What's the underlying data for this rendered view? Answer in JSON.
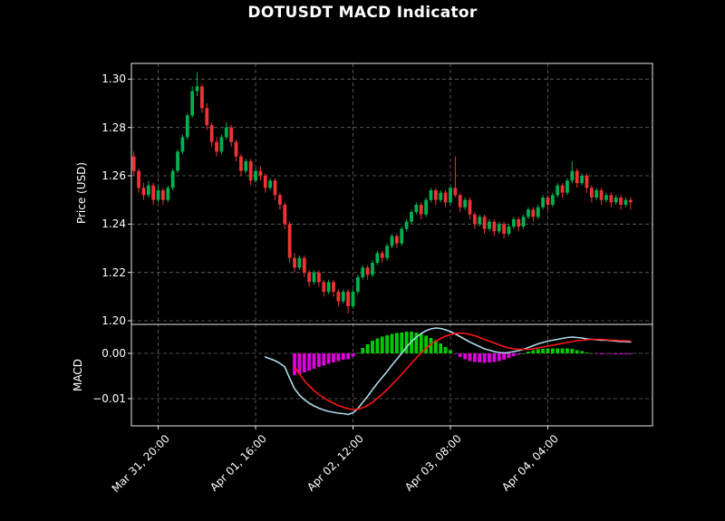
{
  "title": "DOTUSDT MACD Indicator",
  "panels": {
    "price": {
      "ylabel": "Price (USD)"
    },
    "macd": {
      "ylabel": "MACD"
    }
  },
  "colors": {
    "background": "#000000",
    "text": "#ffffff",
    "grid": "#bbbbbb",
    "spine": "#e8e8e8",
    "candle_up": "#00b050",
    "candle_down": "#ef3232",
    "macd_line": "#add8e6",
    "signal_line": "#ff1414",
    "hist_up": "#00cc00",
    "hist_down": "#e000e0"
  },
  "chart_data": [
    {
      "type": "candlestick",
      "title": "DOTUSDT MACD Indicator",
      "ylabel": "Price (USD)",
      "ylim": [
        1.1985,
        1.3065
      ],
      "yticks": [
        1.2,
        1.22,
        1.24,
        1.26,
        1.28,
        1.3
      ],
      "grid": true,
      "xtick_indices": [
        5,
        25,
        45,
        65,
        85
      ],
      "xtick_labels": [
        "Mar 31, 20:00",
        "Apr 01, 16:00",
        "Apr 02, 12:00",
        "Apr 03, 08:00",
        "Apr 04, 04:00"
      ],
      "interval": "1h",
      "ohlc_format": [
        "open",
        "high",
        "low",
        "close"
      ],
      "candles_ohlc": [
        [
          1.268,
          1.27,
          1.26,
          1.262
        ],
        [
          1.262,
          1.263,
          1.253,
          1.255
        ],
        [
          1.255,
          1.257,
          1.25,
          1.252
        ],
        [
          1.252,
          1.258,
          1.251,
          1.256
        ],
        [
          1.256,
          1.257,
          1.248,
          1.25
        ],
        [
          1.25,
          1.256,
          1.249,
          1.254
        ],
        [
          1.254,
          1.255,
          1.248,
          1.25
        ],
        [
          1.25,
          1.256,
          1.249,
          1.255
        ],
        [
          1.255,
          1.263,
          1.254,
          1.262
        ],
        [
          1.262,
          1.271,
          1.261,
          1.27
        ],
        [
          1.27,
          1.277,
          1.269,
          1.276
        ],
        [
          1.276,
          1.286,
          1.275,
          1.285
        ],
        [
          1.285,
          1.297,
          1.284,
          1.295
        ],
        [
          1.295,
          1.303,
          1.293,
          1.297
        ],
        [
          1.297,
          1.298,
          1.286,
          1.288
        ],
        [
          1.288,
          1.29,
          1.279,
          1.281
        ],
        [
          1.281,
          1.282,
          1.272,
          1.274
        ],
        [
          1.274,
          1.276,
          1.268,
          1.27
        ],
        [
          1.27,
          1.277,
          1.269,
          1.276
        ],
        [
          1.276,
          1.282,
          1.275,
          1.28
        ],
        [
          1.28,
          1.281,
          1.272,
          1.274
        ],
        [
          1.274,
          1.275,
          1.266,
          1.268
        ],
        [
          1.268,
          1.269,
          1.26,
          1.262
        ],
        [
          1.262,
          1.267,
          1.261,
          1.266
        ],
        [
          1.266,
          1.267,
          1.256,
          1.258
        ],
        [
          1.258,
          1.263,
          1.257,
          1.262
        ],
        [
          1.262,
          1.264,
          1.258,
          1.26
        ],
        [
          1.26,
          1.261,
          1.253,
          1.255
        ],
        [
          1.255,
          1.259,
          1.254,
          1.258
        ],
        [
          1.258,
          1.259,
          1.25,
          1.252
        ],
        [
          1.252,
          1.253,
          1.246,
          1.248
        ],
        [
          1.248,
          1.249,
          1.238,
          1.24
        ],
        [
          1.24,
          1.241,
          1.224,
          1.226
        ],
        [
          1.226,
          1.228,
          1.22,
          1.222
        ],
        [
          1.222,
          1.227,
          1.221,
          1.226
        ],
        [
          1.226,
          1.227,
          1.218,
          1.22
        ],
        [
          1.22,
          1.221,
          1.214,
          1.216
        ],
        [
          1.216,
          1.221,
          1.215,
          1.22
        ],
        [
          1.22,
          1.221,
          1.214,
          1.216
        ],
        [
          1.216,
          1.217,
          1.21,
          1.212
        ],
        [
          1.212,
          1.217,
          1.211,
          1.216
        ],
        [
          1.216,
          1.217,
          1.21,
          1.212
        ],
        [
          1.212,
          1.213,
          1.206,
          1.208
        ],
        [
          1.208,
          1.213,
          1.207,
          1.212
        ],
        [
          1.212,
          1.213,
          1.203,
          1.206
        ],
        [
          1.206,
          1.213,
          1.205,
          1.212
        ],
        [
          1.212,
          1.219,
          1.211,
          1.218
        ],
        [
          1.218,
          1.223,
          1.217,
          1.222
        ],
        [
          1.222,
          1.223,
          1.217,
          1.219
        ],
        [
          1.219,
          1.225,
          1.218,
          1.224
        ],
        [
          1.224,
          1.229,
          1.223,
          1.228
        ],
        [
          1.228,
          1.229,
          1.224,
          1.226
        ],
        [
          1.226,
          1.232,
          1.225,
          1.231
        ],
        [
          1.231,
          1.236,
          1.23,
          1.235
        ],
        [
          1.235,
          1.236,
          1.23,
          1.232
        ],
        [
          1.232,
          1.239,
          1.231,
          1.238
        ],
        [
          1.238,
          1.242,
          1.237,
          1.241
        ],
        [
          1.241,
          1.246,
          1.24,
          1.245
        ],
        [
          1.245,
          1.249,
          1.244,
          1.248
        ],
        [
          1.248,
          1.249,
          1.242,
          1.244
        ],
        [
          1.244,
          1.251,
          1.243,
          1.25
        ],
        [
          1.25,
          1.255,
          1.249,
          1.254
        ],
        [
          1.254,
          1.255,
          1.248,
          1.25
        ],
        [
          1.25,
          1.254,
          1.249,
          1.253
        ],
        [
          1.253,
          1.254,
          1.247,
          1.249
        ],
        [
          1.249,
          1.256,
          1.248,
          1.255
        ],
        [
          1.255,
          1.268,
          1.251,
          1.252
        ],
        [
          1.252,
          1.253,
          1.245,
          1.247
        ],
        [
          1.247,
          1.251,
          1.246,
          1.25
        ],
        [
          1.25,
          1.251,
          1.242,
          1.244
        ],
        [
          1.244,
          1.245,
          1.238,
          1.24
        ],
        [
          1.24,
          1.244,
          1.239,
          1.243
        ],
        [
          1.243,
          1.244,
          1.236,
          1.238
        ],
        [
          1.238,
          1.242,
          1.237,
          1.241
        ],
        [
          1.241,
          1.242,
          1.235,
          1.237
        ],
        [
          1.237,
          1.241,
          1.236,
          1.24
        ],
        [
          1.24,
          1.241,
          1.234,
          1.236
        ],
        [
          1.236,
          1.24,
          1.235,
          1.239
        ],
        [
          1.239,
          1.243,
          1.238,
          1.242
        ],
        [
          1.242,
          1.243,
          1.237,
          1.239
        ],
        [
          1.239,
          1.244,
          1.238,
          1.243
        ],
        [
          1.243,
          1.247,
          1.242,
          1.246
        ],
        [
          1.246,
          1.247,
          1.241,
          1.243
        ],
        [
          1.243,
          1.248,
          1.242,
          1.247
        ],
        [
          1.247,
          1.252,
          1.246,
          1.251
        ],
        [
          1.251,
          1.252,
          1.246,
          1.248
        ],
        [
          1.248,
          1.253,
          1.247,
          1.252
        ],
        [
          1.252,
          1.257,
          1.251,
          1.256
        ],
        [
          1.256,
          1.257,
          1.251,
          1.253
        ],
        [
          1.253,
          1.259,
          1.252,
          1.258
        ],
        [
          1.258,
          1.266,
          1.257,
          1.262
        ],
        [
          1.262,
          1.263,
          1.255,
          1.257
        ],
        [
          1.257,
          1.261,
          1.256,
          1.26
        ],
        [
          1.26,
          1.261,
          1.253,
          1.255
        ],
        [
          1.255,
          1.256,
          1.249,
          1.251
        ],
        [
          1.251,
          1.255,
          1.25,
          1.254
        ],
        [
          1.254,
          1.255,
          1.248,
          1.25
        ],
        [
          1.25,
          1.253,
          1.249,
          1.252
        ],
        [
          1.252,
          1.253,
          1.247,
          1.249
        ],
        [
          1.249,
          1.252,
          1.248,
          1.251
        ],
        [
          1.251,
          1.252,
          1.246,
          1.248
        ],
        [
          1.248,
          1.251,
          1.247,
          1.25
        ],
        [
          1.25,
          1.251,
          1.246,
          1.249
        ]
      ]
    },
    {
      "type": "macd",
      "ylabel": "MACD",
      "ylim": [
        -0.016,
        0.0064
      ],
      "yticks": [
        0.0,
        -0.01
      ],
      "grid": true,
      "shares_x_with": "candlestick panel",
      "macd_start_index": 27,
      "macd_line": [
        -0.0008,
        -0.0012,
        -0.0016,
        -0.0022,
        -0.003,
        -0.0055,
        -0.0078,
        -0.0092,
        -0.0102,
        -0.011,
        -0.0116,
        -0.0121,
        -0.0125,
        -0.0128,
        -0.013,
        -0.0132,
        -0.0133,
        -0.0135,
        -0.0131,
        -0.0122,
        -0.0108,
        -0.0095,
        -0.008,
        -0.0066,
        -0.0053,
        -0.004,
        -0.0026,
        -0.0013,
        0.0,
        0.0014,
        0.0026,
        0.0036,
        0.0044,
        0.005,
        0.0054,
        0.0056,
        0.0055,
        0.0052,
        0.0048,
        0.0043,
        0.0037,
        0.0031,
        0.0025,
        0.002,
        0.0015,
        0.001,
        0.0007,
        0.0004,
        0.0002,
        0.0001,
        0.0002,
        0.0004,
        0.0006,
        0.0009,
        0.0013,
        0.0017,
        0.0021,
        0.0024,
        0.0027,
        0.0029,
        0.0031,
        0.0033,
        0.0035,
        0.0036,
        0.0035,
        0.0034,
        0.0032,
        0.0031,
        0.003,
        0.0029,
        0.0029,
        0.0028,
        0.0027,
        0.0026,
        0.0026,
        0.0025
      ],
      "signal_start_index": 33,
      "signal_line": [
        -0.003,
        -0.0046,
        -0.006,
        -0.0072,
        -0.0082,
        -0.0091,
        -0.0098,
        -0.0105,
        -0.011,
        -0.0115,
        -0.0119,
        -0.0122,
        -0.0124,
        -0.0123,
        -0.012,
        -0.0115,
        -0.0108,
        -0.0099,
        -0.009,
        -0.008,
        -0.0069,
        -0.0058,
        -0.0046,
        -0.0034,
        -0.0022,
        -0.001,
        0.0001,
        0.0011,
        0.002,
        0.0027,
        0.0033,
        0.0038,
        0.0041,
        0.0044,
        0.0045,
        0.0044,
        0.0042,
        0.0039,
        0.0035,
        0.0031,
        0.0027,
        0.0023,
        0.0019,
        0.0015,
        0.0012,
        0.001,
        0.0009,
        0.0009,
        0.0009,
        0.001,
        0.0012,
        0.0014,
        0.0016,
        0.0018,
        0.002,
        0.0022,
        0.0024,
        0.0026,
        0.0028,
        0.0029,
        0.003,
        0.0031,
        0.0031,
        0.0031,
        0.003,
        0.0029,
        0.0029,
        0.0028,
        0.0028,
        0.0027
      ],
      "histogram_start_index": 33,
      "histogram": [
        -0.0048,
        -0.0046,
        -0.0042,
        -0.0038,
        -0.0034,
        -0.003,
        -0.0027,
        -0.0023,
        -0.002,
        -0.0017,
        -0.0014,
        -0.0013,
        -0.0007,
        0.0001,
        0.0012,
        0.002,
        0.0028,
        0.0033,
        0.0037,
        0.004,
        0.0043,
        0.0045,
        0.0046,
        0.0048,
        0.0048,
        0.0046,
        0.0043,
        0.0039,
        0.0034,
        0.0029,
        0.0022,
        0.0014,
        0.0007,
        -0.0001,
        -0.0008,
        -0.0013,
        -0.0017,
        -0.0019,
        -0.002,
        -0.0021,
        -0.002,
        -0.0019,
        -0.0017,
        -0.0014,
        -0.001,
        -0.0006,
        -0.0003,
        0.0,
        0.0004,
        0.0007,
        0.0009,
        0.001,
        0.0011,
        0.0011,
        0.0011,
        0.0011,
        0.0011,
        0.001,
        0.0007,
        0.0005,
        0.0002,
        0.0,
        -0.0001,
        -0.0002,
        -0.0001,
        -0.0001,
        -0.0002,
        -0.0002,
        -0.0002,
        -0.0002
      ]
    }
  ]
}
